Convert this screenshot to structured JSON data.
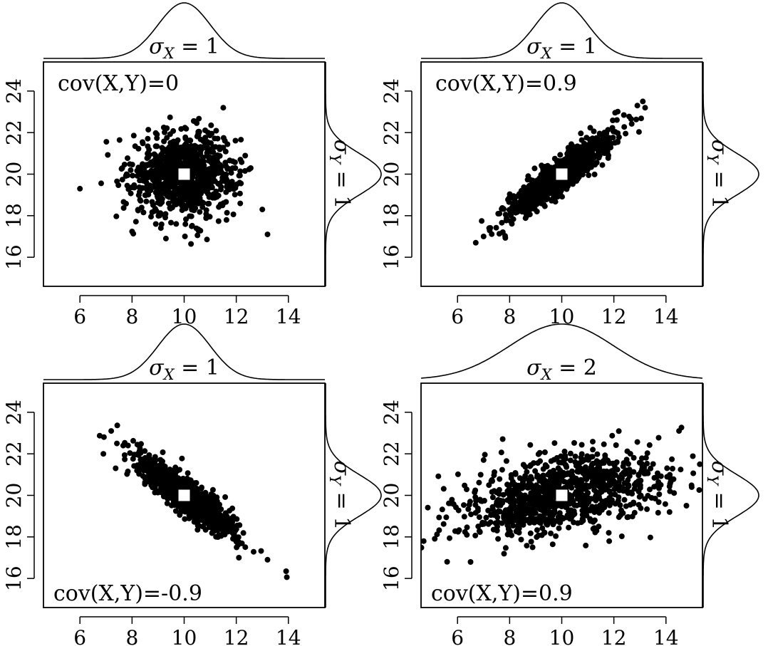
{
  "chart_data": [
    {
      "type": "scatter",
      "id": "top-left",
      "title": "",
      "xlabel": "",
      "ylabel": "",
      "xlim": [
        4.6,
        15.4
      ],
      "ylim": [
        14.6,
        25.4
      ],
      "xticks": [
        6,
        8,
        10,
        12,
        14
      ],
      "yticks": [
        16,
        18,
        20,
        22,
        24
      ],
      "grid": false,
      "mean": {
        "x": 10,
        "y": 20
      },
      "sigma_x": 1,
      "sigma_y": 1,
      "cov": 0,
      "n_points": 900,
      "extremes": [
        {
          "x": 6.0,
          "y": 19.3
        },
        {
          "x": 13.2,
          "y": 17.1
        },
        {
          "x": 11.5,
          "y": 23.2
        },
        {
          "x": 9.3,
          "y": 16.9
        },
        {
          "x": 13.0,
          "y": 18.3
        }
      ],
      "annotation": "cov(X,Y)=0",
      "annotation_position": "top-left",
      "marginal_x_label": "σ_X = 1",
      "marginal_y_label": "σ_Y = 1"
    },
    {
      "type": "scatter",
      "id": "top-right",
      "title": "",
      "xlabel": "",
      "ylabel": "",
      "xlim": [
        4.6,
        15.4
      ],
      "ylim": [
        14.6,
        25.4
      ],
      "xticks": [
        6,
        8,
        10,
        12,
        14
      ],
      "yticks": [
        16,
        18,
        20,
        22,
        24
      ],
      "grid": false,
      "mean": {
        "x": 10,
        "y": 20
      },
      "sigma_x": 1,
      "sigma_y": 1,
      "cov": 0.9,
      "n_points": 900,
      "extremes": [
        {
          "x": 6.7,
          "y": 16.7
        },
        {
          "x": 13.2,
          "y": 23.2
        },
        {
          "x": 7.0,
          "y": 17.0
        },
        {
          "x": 12.9,
          "y": 23.3
        }
      ],
      "annotation": "cov(X,Y)=0.9",
      "annotation_position": "top-left",
      "marginal_x_label": "σ_X = 1",
      "marginal_y_label": "σ_Y = 1"
    },
    {
      "type": "scatter",
      "id": "bottom-left",
      "title": "",
      "xlabel": "",
      "ylabel": "",
      "xlim": [
        4.6,
        15.4
      ],
      "ylim": [
        14.6,
        25.4
      ],
      "xticks": [
        6,
        8,
        10,
        12,
        14
      ],
      "yticks": [
        16,
        18,
        20,
        22,
        24
      ],
      "grid": false,
      "mean": {
        "x": 10,
        "y": 20
      },
      "sigma_x": 1,
      "sigma_y": 1,
      "cov": -0.9,
      "n_points": 900,
      "extremes": [
        {
          "x": 6.9,
          "y": 22.0
        },
        {
          "x": 7.2,
          "y": 23.1
        },
        {
          "x": 13.2,
          "y": 16.9
        },
        {
          "x": 12.1,
          "y": 17.0
        }
      ],
      "annotation": "cov(X,Y)=-0.9",
      "annotation_position": "bottom-left",
      "marginal_x_label": "σ_X = 1",
      "marginal_y_label": "σ_Y = 1"
    },
    {
      "type": "scatter",
      "id": "bottom-right",
      "title": "",
      "xlabel": "",
      "ylabel": "",
      "xlim": [
        4.6,
        15.4
      ],
      "ylim": [
        14.6,
        25.4
      ],
      "xticks": [
        6,
        8,
        10,
        12,
        14
      ],
      "yticks": [
        16,
        18,
        20,
        22,
        24
      ],
      "grid": false,
      "mean": {
        "x": 10,
        "y": 20
      },
      "sigma_x": 2,
      "sigma_y": 1,
      "cov": 0.9,
      "n_points": 1000,
      "extremes": [
        {
          "x": 5.6,
          "y": 16.8
        },
        {
          "x": 14.5,
          "y": 23.1
        },
        {
          "x": 4.7,
          "y": 17.8
        },
        {
          "x": 15.3,
          "y": 21.5
        },
        {
          "x": 7.0,
          "y": 21.7
        }
      ],
      "annotation": "cov(X,Y)=0.9",
      "annotation_position": "bottom-left",
      "marginal_x_label": "σ_X = 2",
      "marginal_y_label": "σ_Y = 1"
    }
  ]
}
